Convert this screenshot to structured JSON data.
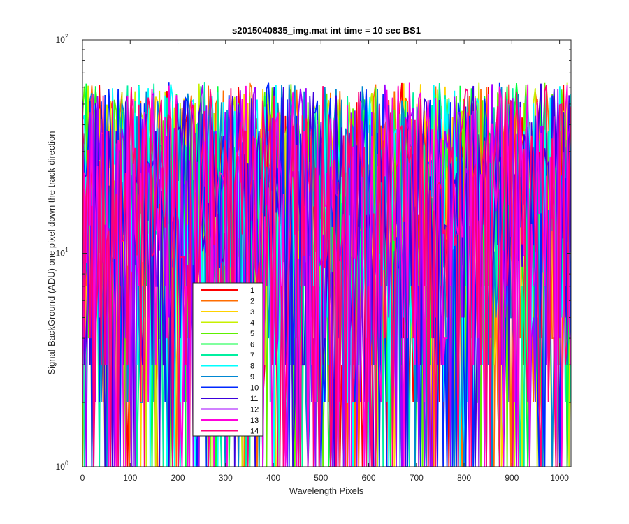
{
  "chart_data": {
    "type": "line",
    "title": "s2015040835_img.mat int time = 10 sec   BS1",
    "xlabel": "Wavelength Pixels",
    "ylabel": "Signal-BackGround (ADU) one pixel down the track direction",
    "x_scale": "linear",
    "y_scale": "log",
    "xlim": [
      0,
      1024
    ],
    "ylim": [
      1,
      100
    ],
    "x_ticks": [
      0,
      100,
      200,
      300,
      400,
      500,
      600,
      700,
      800,
      900,
      1000
    ],
    "y_ticks": [
      {
        "value": 1,
        "base": "10",
        "exp": "0"
      },
      {
        "value": 10,
        "base": "10",
        "exp": "1"
      },
      {
        "value": 100,
        "base": "10",
        "exp": "2"
      }
    ],
    "grid": false,
    "legend_position": "lower-left",
    "series": [
      {
        "name": "1",
        "color": "#ff0000"
      },
      {
        "name": "2",
        "color": "#ff6e00"
      },
      {
        "name": "3",
        "color": "#ffd200"
      },
      {
        "name": "4",
        "color": "#c8f000"
      },
      {
        "name": "5",
        "color": "#5ef000"
      },
      {
        "name": "6",
        "color": "#00ff3c"
      },
      {
        "name": "7",
        "color": "#00f0a0"
      },
      {
        "name": "8",
        "color": "#00ffff"
      },
      {
        "name": "9",
        "color": "#0087d2"
      },
      {
        "name": "10",
        "color": "#0028ff"
      },
      {
        "name": "11",
        "color": "#3c00dc"
      },
      {
        "name": "12",
        "color": "#a000ff"
      },
      {
        "name": "13",
        "color": "#ff00dc"
      },
      {
        "name": "14",
        "color": "#ff0078"
      }
    ],
    "value_note": "Each series is dense per-pixel noise spanning roughly 1 to 70 ADU across all 1024 pixels; values are not individually readable."
  }
}
